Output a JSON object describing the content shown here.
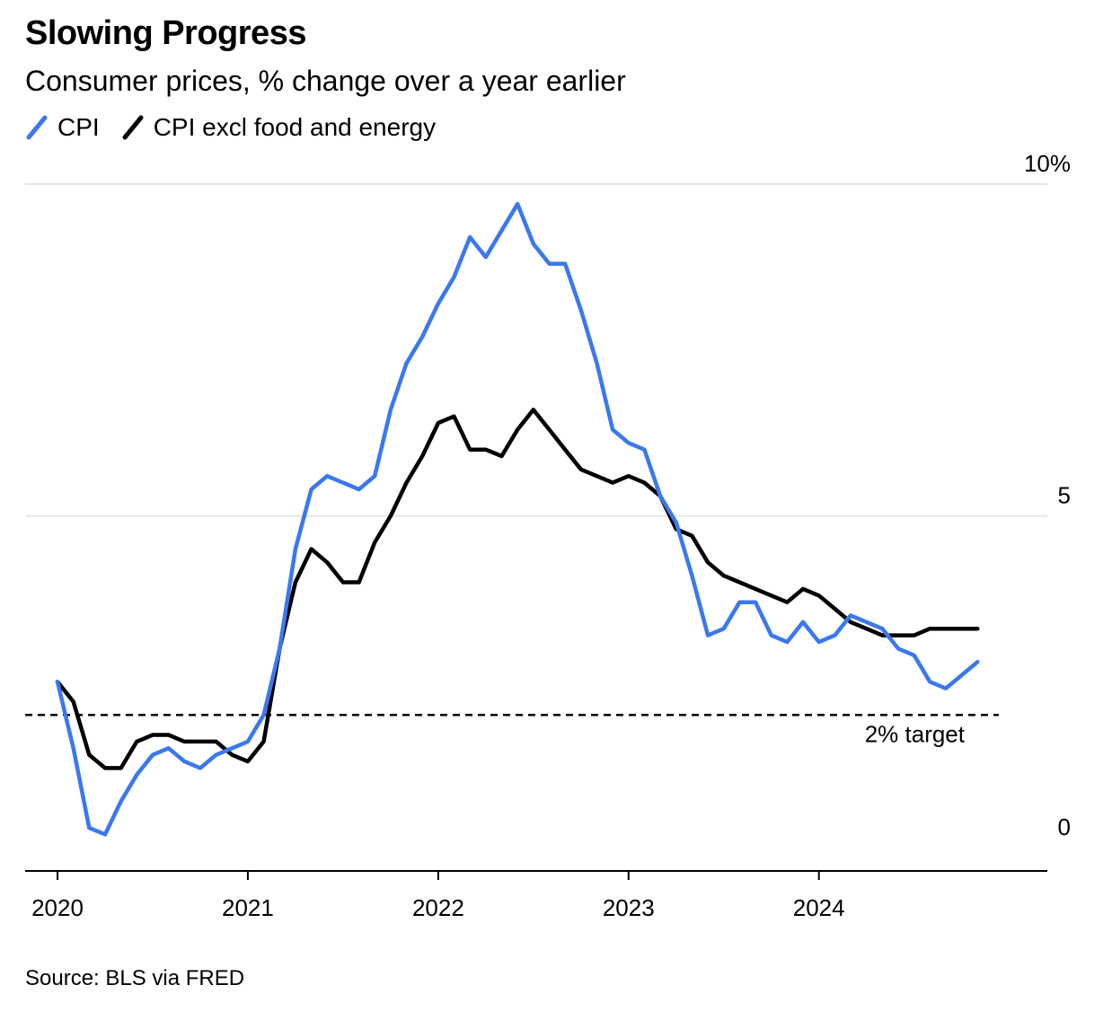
{
  "title": "Slowing Progress",
  "subtitle": "Consumer prices, % change over a year earlier",
  "source": "Source: BLS via FRED",
  "chart_data": {
    "type": "line",
    "title": "Slowing Progress",
    "subtitle": "Consumer prices, % change over a year earlier",
    "y_axis_position": "right",
    "y_ticks": [
      {
        "value": 0,
        "label": "0"
      },
      {
        "value": 5,
        "label": "5"
      },
      {
        "value": 10,
        "label": "10%"
      }
    ],
    "x_ticks": [
      {
        "value": 2020,
        "label": "2020"
      },
      {
        "value": 2021,
        "label": "2021"
      },
      {
        "value": 2022,
        "label": "2022"
      },
      {
        "value": 2023,
        "label": "2023"
      },
      {
        "value": 2024,
        "label": "2024"
      }
    ],
    "xlim": [
      2019.83,
      2025.2
    ],
    "ylim": [
      -0.35,
      10.0
    ],
    "grid": "horizontal",
    "legend_position": "top-left",
    "reference_line": {
      "value": 2,
      "label": "2% target",
      "style": "dashed"
    },
    "x_start": 2020.0,
    "x_step_months": 1,
    "series": [
      {
        "name": "CPI",
        "color": "#3b78f0",
        "values": [
          2.5,
          1.5,
          0.3,
          0.2,
          0.7,
          1.1,
          1.4,
          1.5,
          1.3,
          1.2,
          1.4,
          1.5,
          1.6,
          2.0,
          3.0,
          4.5,
          5.4,
          5.6,
          5.5,
          5.4,
          5.6,
          6.6,
          7.3,
          7.7,
          8.2,
          8.6,
          9.2,
          8.9,
          9.3,
          9.7,
          9.1,
          8.8,
          8.8,
          8.1,
          7.3,
          6.3,
          6.1,
          6.0,
          5.3,
          4.9,
          4.1,
          3.2,
          3.3,
          3.7,
          3.7,
          3.2,
          3.1,
          3.4,
          3.1,
          3.2,
          3.5,
          3.4,
          3.3,
          3.0,
          2.9,
          2.5,
          2.4,
          2.6,
          2.8
        ]
      },
      {
        "name": "CPI excl food and energy",
        "color": "#000000",
        "values": [
          2.5,
          2.2,
          1.4,
          1.2,
          1.2,
          1.6,
          1.7,
          1.7,
          1.6,
          1.6,
          1.6,
          1.4,
          1.3,
          1.6,
          3.0,
          4.0,
          4.5,
          4.3,
          4.0,
          4.0,
          4.6,
          5.0,
          5.5,
          5.9,
          6.4,
          6.5,
          6.0,
          6.0,
          5.9,
          6.3,
          6.6,
          6.3,
          6.0,
          5.7,
          5.6,
          5.5,
          5.6,
          5.5,
          5.3,
          4.8,
          4.7,
          4.3,
          4.1,
          4.0,
          3.9,
          3.8,
          3.7,
          3.9,
          3.8,
          3.6,
          3.4,
          3.3,
          3.2,
          3.2,
          3.2,
          3.3,
          3.3,
          3.3,
          3.3
        ]
      }
    ]
  }
}
